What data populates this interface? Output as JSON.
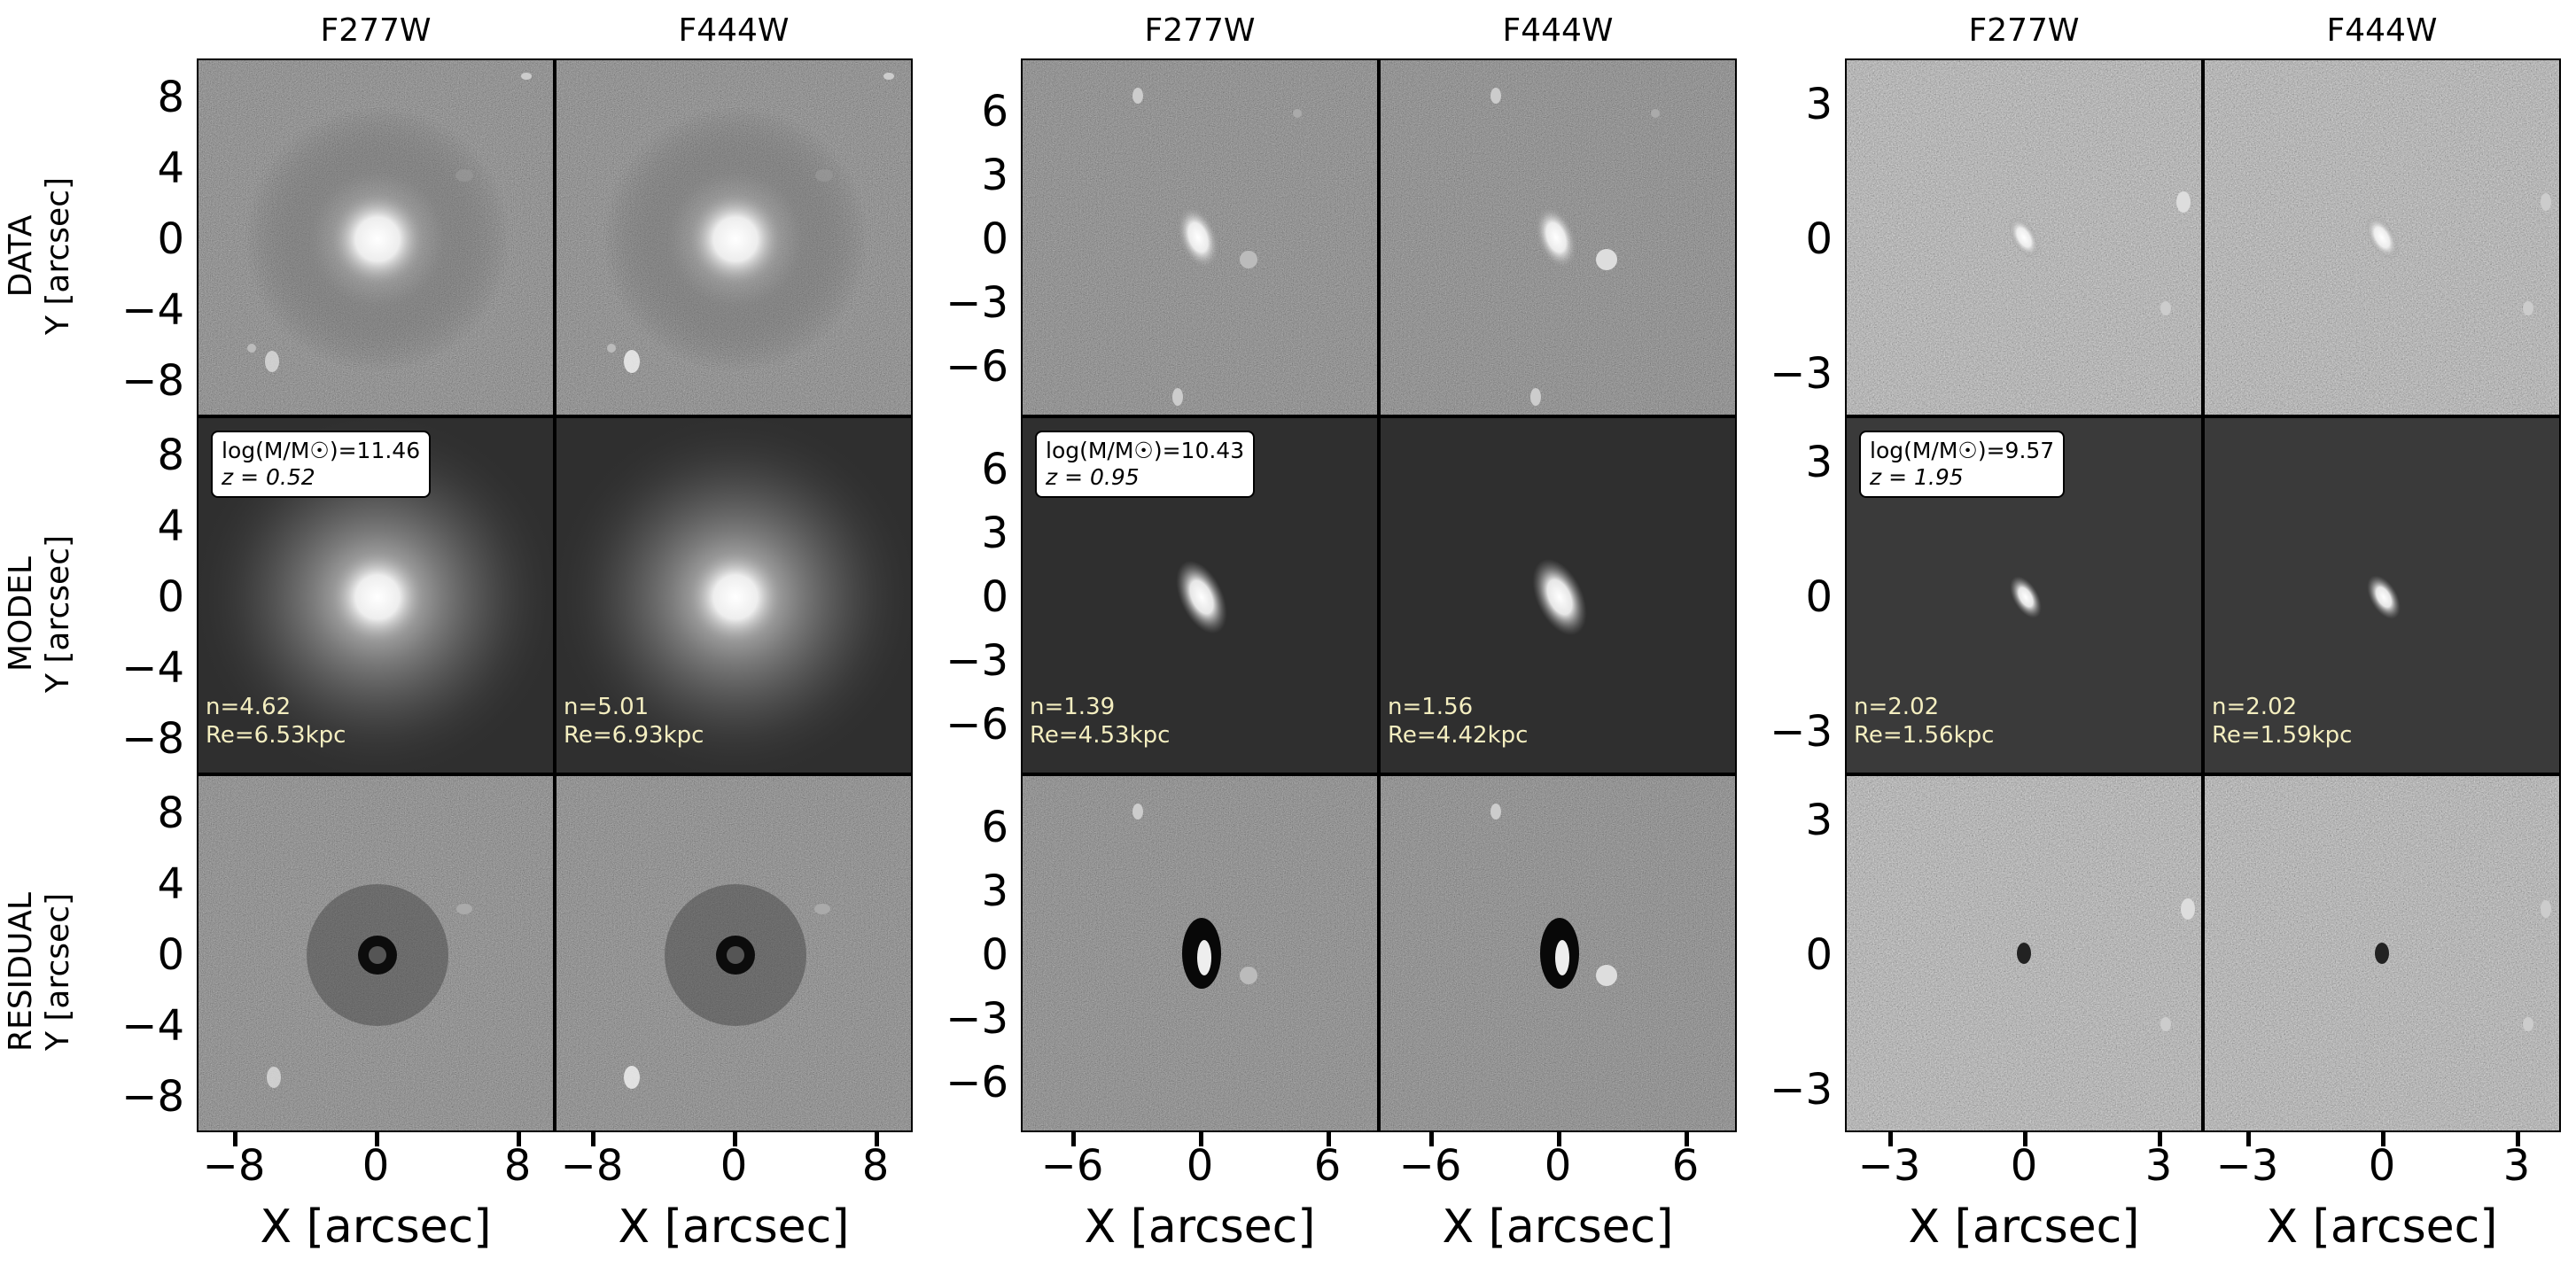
{
  "figure": {
    "row_labels": [
      {
        "name": "DATA",
        "axis": "Y [arcsec]"
      },
      {
        "name": "MODEL",
        "axis": "Y [arcsec]"
      },
      {
        "name": "RESIDUAL",
        "axis": "Y [arcsec]"
      }
    ],
    "x_axis_label": "X [arcsec]",
    "galaxies": [
      {
        "filters": [
          "F277W",
          "F444W"
        ],
        "y_ticks": [
          "8",
          "4",
          "0",
          "−4",
          "−8"
        ],
        "x_ticks": [
          "−8",
          "0",
          "8"
        ],
        "info": {
          "mass": "log(M/M☉)=11.46",
          "z": "z = 0.52"
        },
        "fits": [
          {
            "n": "n=4.62",
            "re": "Re=6.53kpc"
          },
          {
            "n": "n=5.01",
            "re": "Re=6.93kpc"
          }
        ]
      },
      {
        "filters": [
          "F277W",
          "F444W"
        ],
        "y_ticks": [
          "6",
          "3",
          "0",
          "−3",
          "−6"
        ],
        "x_ticks": [
          "−6",
          "0",
          "6"
        ],
        "info": {
          "mass": "log(M/M☉)=10.43",
          "z": "z = 0.95"
        },
        "fits": [
          {
            "n": "n=1.39",
            "re": "Re=4.53kpc"
          },
          {
            "n": "n=1.56",
            "re": "Re=4.42kpc"
          }
        ]
      },
      {
        "filters": [
          "F277W",
          "F444W"
        ],
        "y_ticks": [
          "3",
          "0",
          "−3"
        ],
        "x_ticks": [
          "−3",
          "0",
          "3"
        ],
        "info": {
          "mass": "log(M/M☉)=9.57",
          "z": "z = 1.95"
        },
        "fits": [
          {
            "n": "n=2.02",
            "re": "Re=1.56kpc"
          },
          {
            "n": "n=2.02",
            "re": "Re=1.59kpc"
          }
        ]
      }
    ]
  }
}
